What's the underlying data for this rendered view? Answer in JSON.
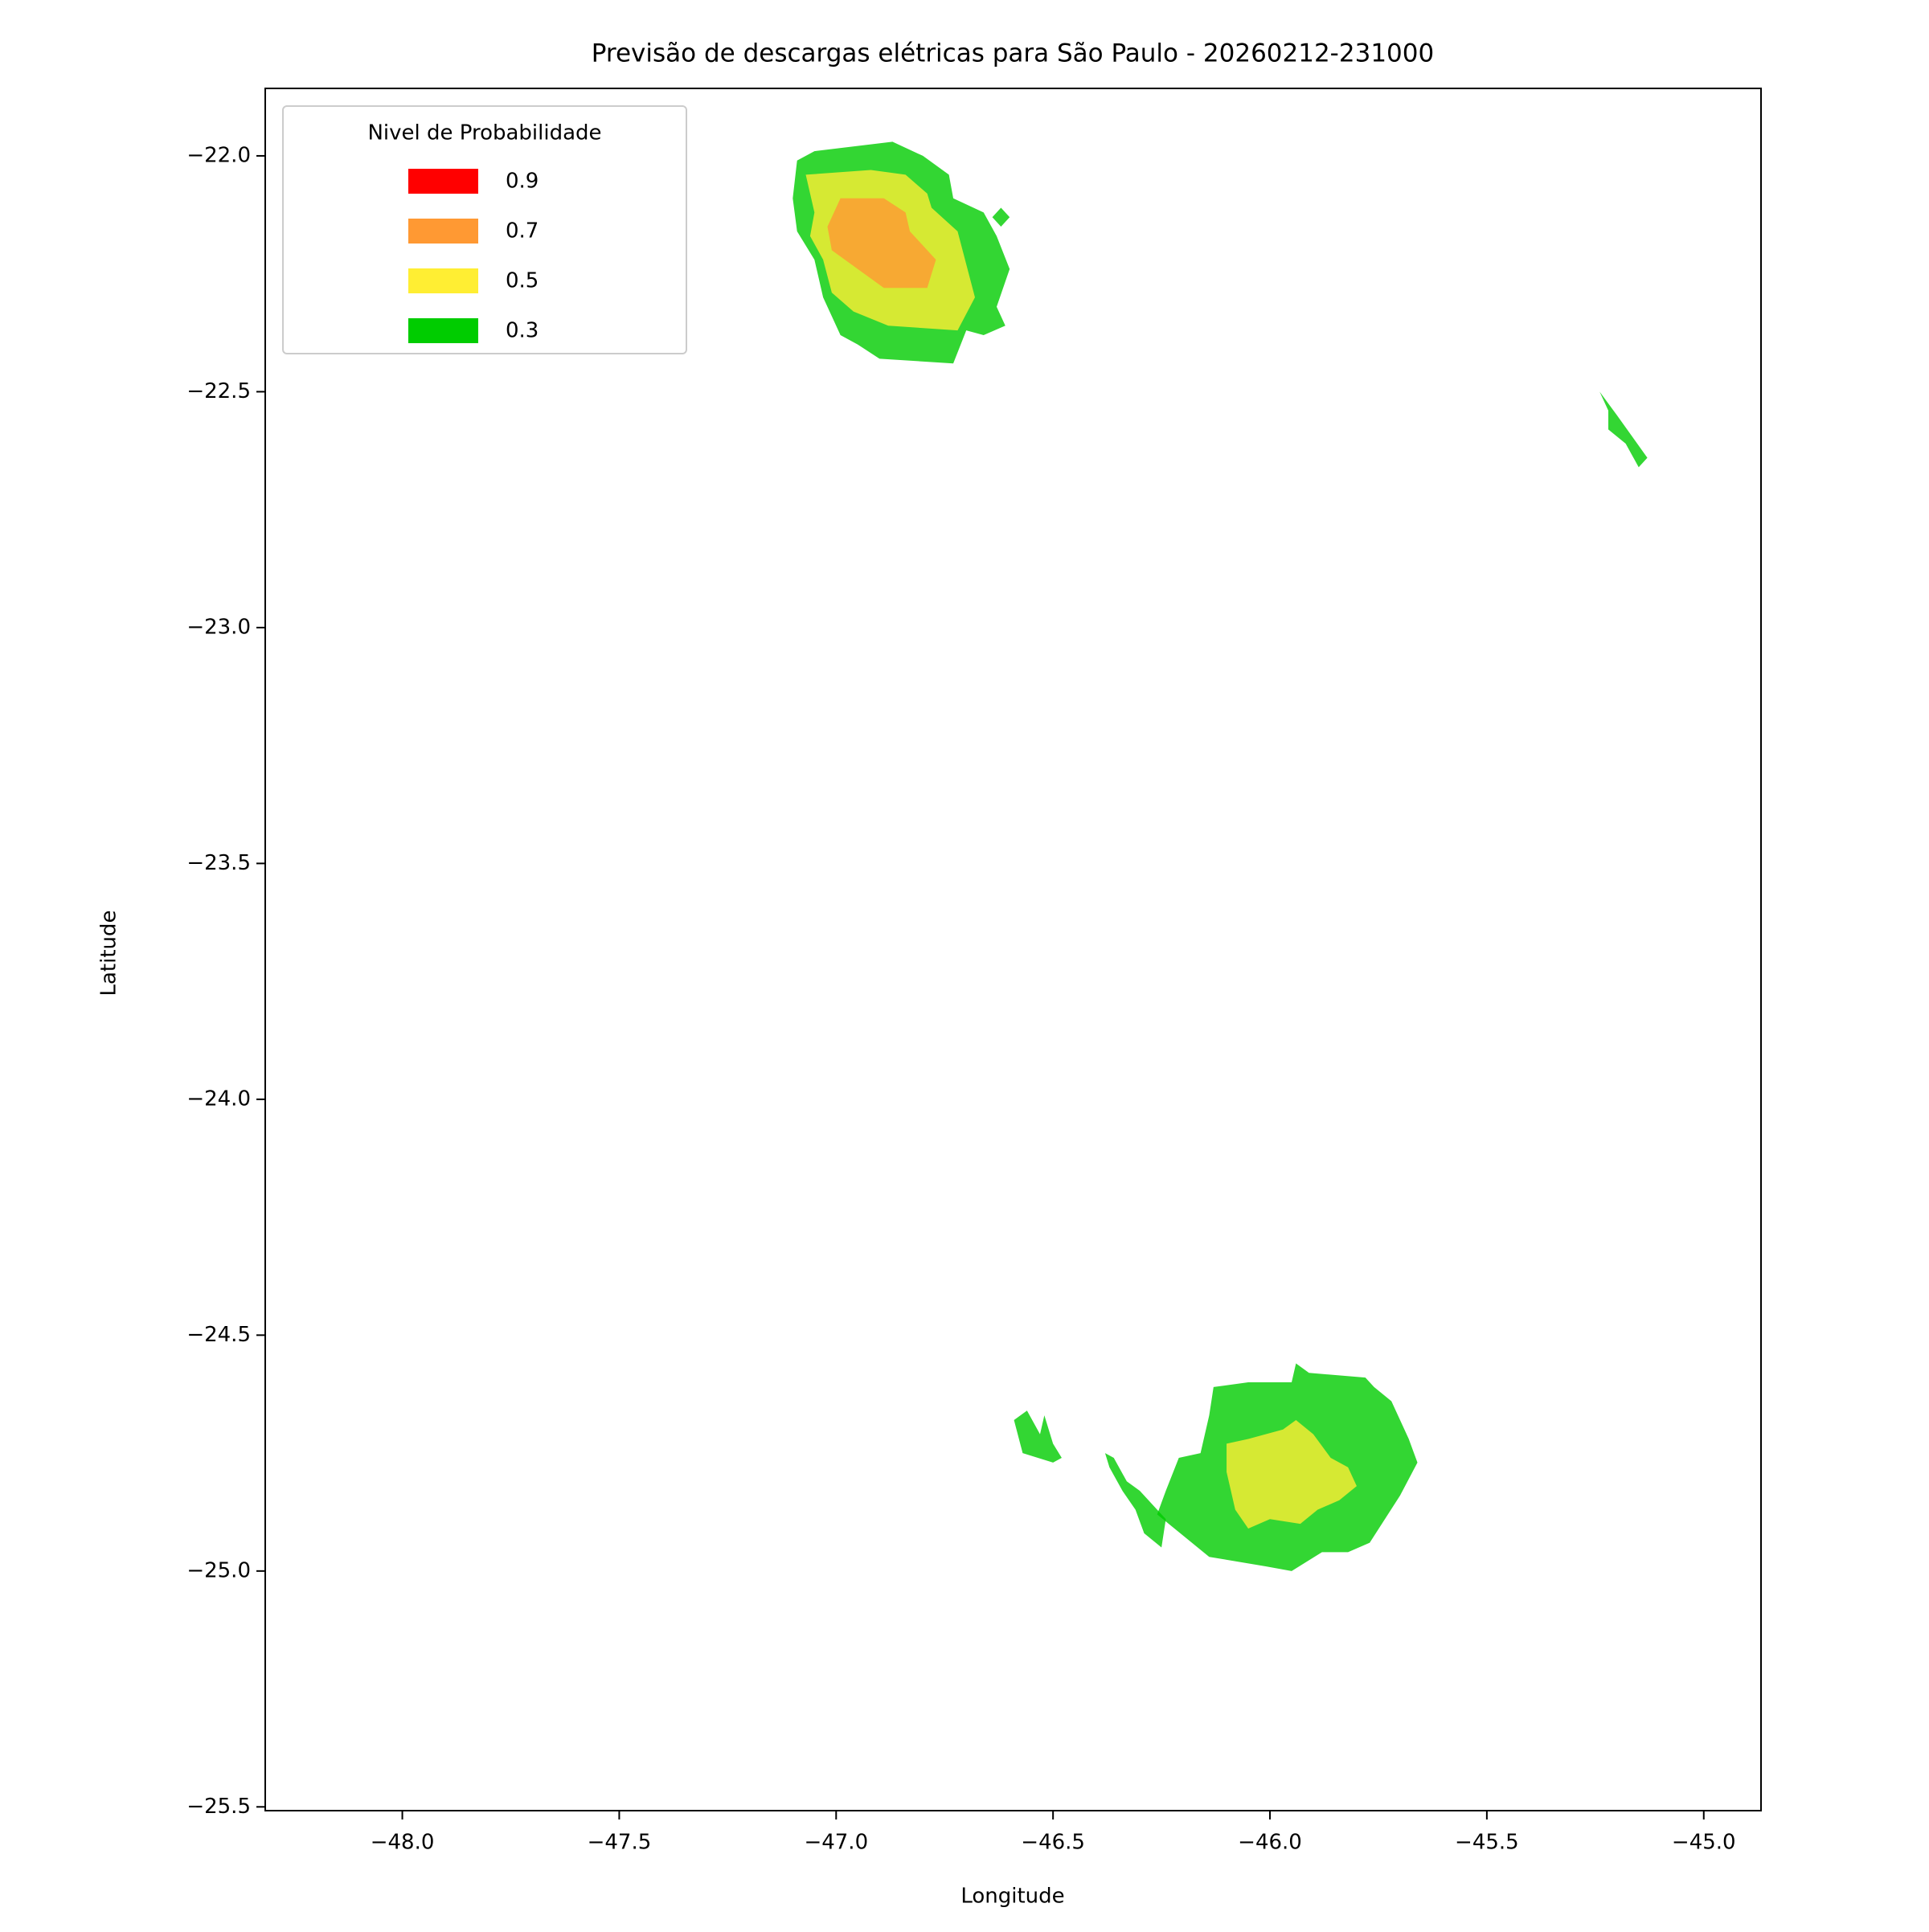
{
  "chart_data": {
    "type": "contourf",
    "title": "Previsão de descargas elétricas para São Paulo - 20260212-231000",
    "x_label": "Longitude",
    "y_label": "Latitude",
    "xlim": [
      -48.316,
      -44.868
    ],
    "ylim": [
      -25.508,
      -21.857
    ],
    "xticks": [
      {
        "value": -48.0,
        "label": "−48.0"
      },
      {
        "value": -47.5,
        "label": "−47.5"
      },
      {
        "value": -47.0,
        "label": "−47.0"
      },
      {
        "value": -46.5,
        "label": "−46.5"
      },
      {
        "value": -46.0,
        "label": "−46.0"
      },
      {
        "value": -45.5,
        "label": "−45.5"
      },
      {
        "value": -45.0,
        "label": "−45.0"
      }
    ],
    "yticks": [
      {
        "value": -22.0,
        "label": "−22.0"
      },
      {
        "value": -22.5,
        "label": "−22.5"
      },
      {
        "value": -23.0,
        "label": "−23.0"
      },
      {
        "value": -23.5,
        "label": "−23.5"
      },
      {
        "value": -24.0,
        "label": "−24.0"
      },
      {
        "value": -24.5,
        "label": "−24.5"
      },
      {
        "value": -25.0,
        "label": "−25.0"
      },
      {
        "value": -25.5,
        "label": "−25.5"
      }
    ],
    "alpha": 0.8,
    "legend": {
      "title": "Nivel de Probabilidade",
      "position": "upper left",
      "levels": [
        0.9,
        0.7,
        0.5,
        0.3
      ],
      "colors": [
        "#ff0000",
        "#ff9933",
        "#ffee33",
        "#00cc00"
      ]
    },
    "regions": [
      {
        "level": 0.3,
        "lon": [
          -47.09,
          -47.05,
          -46.87,
          -46.8,
          -46.74,
          -46.73,
          -46.66,
          -46.63,
          -46.6,
          -46.63,
          -46.61,
          -46.66,
          -46.7,
          -46.73,
          -46.9,
          -46.95,
          -46.99,
          -47.03,
          -47.05,
          -47.09,
          -47.1
        ],
        "lat": [
          -22.01,
          -21.99,
          -21.97,
          -22.0,
          -22.04,
          -22.09,
          -22.12,
          -22.17,
          -22.24,
          -22.32,
          -22.36,
          -22.38,
          -22.37,
          -22.44,
          -22.43,
          -22.4,
          -22.38,
          -22.3,
          -22.22,
          -22.16,
          -22.09
        ]
      },
      {
        "level": 0.3,
        "lon": [
          -46.64,
          -46.62,
          -46.6,
          -46.62
        ],
        "lat": [
          -22.13,
          -22.11,
          -22.13,
          -22.15
        ]
      },
      {
        "level": 0.3,
        "lon": [
          -45.24,
          -45.2,
          -45.13,
          -45.15,
          -45.18,
          -45.22,
          -45.22
        ],
        "lat": [
          -22.5,
          -22.55,
          -22.64,
          -22.66,
          -22.61,
          -22.58,
          -22.54
        ]
      },
      {
        "level": 0.3,
        "lon": [
          -46.13,
          -46.05,
          -45.95,
          -45.94,
          -45.91,
          -45.78,
          -45.76,
          -45.72,
          -45.68,
          -45.66,
          -45.7,
          -45.77,
          -45.82,
          -45.88,
          -45.95,
          -46.01,
          -46.14,
          -46.26,
          -46.24,
          -46.21,
          -46.16,
          -46.14
        ],
        "lat": [
          -24.61,
          -24.6,
          -24.6,
          -24.56,
          -24.58,
          -24.59,
          -24.61,
          -24.64,
          -24.72,
          -24.77,
          -24.84,
          -24.94,
          -24.96,
          -24.96,
          -25.0,
          -24.99,
          -24.97,
          -24.88,
          -24.83,
          -24.76,
          -24.75,
          -24.67
        ]
      },
      {
        "level": 0.3,
        "lon": [
          -46.59,
          -46.56,
          -46.53,
          -46.52,
          -46.5,
          -46.48,
          -46.5,
          -46.57
        ],
        "lat": [
          -24.68,
          -24.66,
          -24.71,
          -24.67,
          -24.73,
          -24.76,
          -24.77,
          -24.75
        ]
      },
      {
        "level": 0.3,
        "lon": [
          -46.38,
          -46.36,
          -46.33,
          -46.3,
          -46.24,
          -46.25,
          -46.29,
          -46.31,
          -46.34,
          -46.37
        ],
        "lat": [
          -24.75,
          -24.76,
          -24.81,
          -24.83,
          -24.89,
          -24.95,
          -24.92,
          -24.87,
          -24.83,
          -24.78
        ]
      },
      {
        "level": 0.5,
        "lon": [
          -47.07,
          -46.92,
          -46.84,
          -46.79,
          -46.78,
          -46.72,
          -46.68,
          -46.72,
          -46.88,
          -46.96,
          -47.01,
          -47.03,
          -47.06,
          -47.05
        ],
        "lat": [
          -22.04,
          -22.03,
          -22.04,
          -22.08,
          -22.11,
          -22.16,
          -22.3,
          -22.37,
          -22.36,
          -22.33,
          -22.29,
          -22.22,
          -22.17,
          -22.12
        ]
      },
      {
        "level": 0.5,
        "lon": [
          -46.1,
          -46.05,
          -46.01,
          -45.97,
          -45.94,
          -45.9,
          -45.86,
          -45.82,
          -45.8,
          -45.84,
          -45.89,
          -45.93,
          -46.0,
          -46.05,
          -46.08,
          -46.1
        ],
        "lat": [
          -24.73,
          -24.72,
          -24.71,
          -24.7,
          -24.68,
          -24.71,
          -24.76,
          -24.78,
          -24.82,
          -24.85,
          -24.87,
          -24.9,
          -24.89,
          -24.91,
          -24.87,
          -24.79
        ]
      },
      {
        "level": 0.7,
        "lon": [
          -46.99,
          -46.89,
          -46.84,
          -46.83,
          -46.79,
          -46.77,
          -46.79,
          -46.89,
          -47.01,
          -47.02
        ],
        "lat": [
          -22.09,
          -22.09,
          -22.12,
          -22.16,
          -22.2,
          -22.22,
          -22.28,
          -22.28,
          -22.2,
          -22.15
        ]
      }
    ]
  }
}
